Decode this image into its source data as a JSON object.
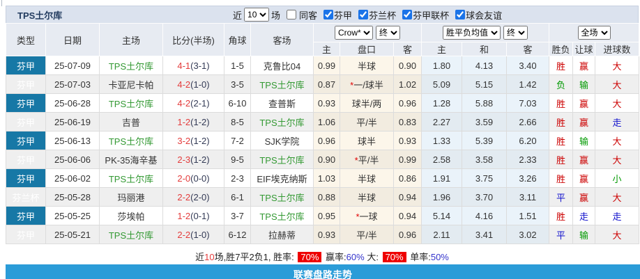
{
  "title": "TPS土尔库",
  "controls": {
    "near_label": "近",
    "near_value": "10",
    "matches_label": "场",
    "same_away_label": "同客",
    "same_away_checked": false,
    "leagues": [
      "芬甲",
      "芬兰杯",
      "芬甲联杯",
      "球会友谊"
    ],
    "bookmaker": "Crow*",
    "bookmaker_state": "终",
    "odds_view": "胜平负均值",
    "odds_state": "终",
    "scope": "全场"
  },
  "columns": {
    "type": "类型",
    "date": "日期",
    "home": "主场",
    "score": "比分(半场)",
    "corners": "角球",
    "away": "客场",
    "h_home": "主",
    "h_line": "盘口",
    "h_away": "客",
    "o_home": "主",
    "o_draw": "和",
    "o_away": "客",
    "res_wdl": "胜负",
    "res_handicap": "让球",
    "res_goals": "进球数"
  },
  "rows": [
    {
      "league": "芬甲",
      "league_style": "dark",
      "date": "25-07-09",
      "home": "TPS土尔库",
      "home_self": true,
      "score": "4-1",
      "half": "(3-1)",
      "corners": "1-5",
      "away": "克鲁比04",
      "away_self": false,
      "hcp_home": "0.99",
      "hcp_star": false,
      "hcp_line": "半球",
      "hcp_away": "0.90",
      "win": "1.80",
      "draw": "4.13",
      "lose": "3.40",
      "res": "胜",
      "res_color": "red",
      "hcp_res": "赢",
      "hcp_res_color": "red",
      "goal_res": "大",
      "goal_res_color": "red"
    },
    {
      "league": "芬甲",
      "league_style": "dark",
      "date": "25-07-03",
      "home": "卡亚尼卡帕",
      "home_self": false,
      "score": "4-2",
      "half": "(1-0)",
      "corners": "3-5",
      "away": "TPS土尔库",
      "away_self": true,
      "hcp_home": "0.87",
      "hcp_star": true,
      "hcp_line": "一/球半",
      "hcp_away": "1.02",
      "win": "5.09",
      "draw": "5.15",
      "lose": "1.42",
      "res": "负",
      "res_color": "green",
      "hcp_res": "输",
      "hcp_res_color": "green",
      "goal_res": "大",
      "goal_res_color": "red"
    },
    {
      "league": "芬甲",
      "league_style": "dark",
      "date": "25-06-28",
      "home": "TPS土尔库",
      "home_self": true,
      "score": "4-2",
      "half": "(2-1)",
      "corners": "6-10",
      "away": "查普斯",
      "away_self": false,
      "hcp_home": "0.93",
      "hcp_star": false,
      "hcp_line": "球半/两",
      "hcp_away": "0.96",
      "win": "1.28",
      "draw": "5.88",
      "lose": "7.03",
      "res": "胜",
      "res_color": "red",
      "hcp_res": "赢",
      "hcp_res_color": "red",
      "goal_res": "大",
      "goal_res_color": "red"
    },
    {
      "league": "芬甲",
      "league_style": "dark",
      "date": "25-06-19",
      "home": "吉普",
      "home_self": false,
      "score": "1-2",
      "half": "(1-2)",
      "corners": "8-5",
      "away": "TPS土尔库",
      "away_self": true,
      "hcp_home": "1.06",
      "hcp_star": false,
      "hcp_line": "平/半",
      "hcp_away": "0.83",
      "win": "2.27",
      "draw": "3.59",
      "lose": "2.66",
      "res": "胜",
      "res_color": "red",
      "hcp_res": "赢",
      "hcp_res_color": "red",
      "goal_res": "走",
      "goal_res_color": "blue"
    },
    {
      "league": "芬甲",
      "league_style": "dark",
      "date": "25-06-13",
      "home": "TPS土尔库",
      "home_self": true,
      "score": "3-2",
      "half": "(1-2)",
      "corners": "7-2",
      "away": "SJK学院",
      "away_self": false,
      "hcp_home": "0.96",
      "hcp_star": false,
      "hcp_line": "球半",
      "hcp_away": "0.93",
      "win": "1.33",
      "draw": "5.39",
      "lose": "6.20",
      "res": "胜",
      "res_color": "red",
      "hcp_res": "输",
      "hcp_res_color": "green",
      "goal_res": "大",
      "goal_res_color": "red"
    },
    {
      "league": "芬甲",
      "league_style": "dark",
      "date": "25-06-06",
      "home": "PK-35海辛基",
      "home_self": false,
      "score": "2-3",
      "half": "(1-2)",
      "corners": "9-5",
      "away": "TPS土尔库",
      "away_self": true,
      "hcp_home": "0.90",
      "hcp_star": true,
      "hcp_line": "平/半",
      "hcp_away": "0.99",
      "win": "2.58",
      "draw": "3.58",
      "lose": "2.33",
      "res": "胜",
      "res_color": "red",
      "hcp_res": "赢",
      "hcp_res_color": "red",
      "goal_res": "大",
      "goal_res_color": "red"
    },
    {
      "league": "芬甲",
      "league_style": "dark",
      "date": "25-06-02",
      "home": "TPS土尔库",
      "home_self": true,
      "score": "2-0",
      "half": "(0-0)",
      "corners": "2-3",
      "away": "EIF埃克纳斯",
      "away_self": false,
      "hcp_home": "1.03",
      "hcp_star": false,
      "hcp_line": "半球",
      "hcp_away": "0.86",
      "win": "1.91",
      "draw": "3.75",
      "lose": "3.26",
      "res": "胜",
      "res_color": "red",
      "hcp_res": "赢",
      "hcp_res_color": "red",
      "goal_res": "小",
      "goal_res_color": "green"
    },
    {
      "league": "芬兰杯",
      "league_style": "light",
      "date": "25-05-28",
      "home": "玛丽港",
      "home_self": false,
      "score": "2-2",
      "half": "(2-0)",
      "corners": "6-1",
      "away": "TPS土尔库",
      "away_self": true,
      "hcp_home": "0.88",
      "hcp_star": false,
      "hcp_line": "半球",
      "hcp_away": "0.94",
      "win": "1.96",
      "draw": "3.70",
      "lose": "3.11",
      "res": "平",
      "res_color": "blue",
      "hcp_res": "赢",
      "hcp_res_color": "red",
      "goal_res": "大",
      "goal_res_color": "red"
    },
    {
      "league": "芬甲",
      "league_style": "dark",
      "date": "25-05-25",
      "home": "莎埃帕",
      "home_self": false,
      "score": "1-2",
      "half": "(0-1)",
      "corners": "3-7",
      "away": "TPS土尔库",
      "away_self": true,
      "hcp_home": "0.95",
      "hcp_star": true,
      "hcp_line": "一球",
      "hcp_away": "0.94",
      "win": "5.14",
      "draw": "4.16",
      "lose": "1.51",
      "res": "胜",
      "res_color": "red",
      "hcp_res": "走",
      "hcp_res_color": "blue",
      "goal_res": "走",
      "goal_res_color": "blue"
    },
    {
      "league": "芬甲",
      "league_style": "dark",
      "date": "25-05-21",
      "home": "TPS土尔库",
      "home_self": true,
      "score": "2-2",
      "half": "(1-0)",
      "corners": "6-12",
      "away": "拉赫蒂",
      "away_self": false,
      "hcp_home": "0.93",
      "hcp_star": false,
      "hcp_line": "平/半",
      "hcp_away": "0.96",
      "win": "2.11",
      "draw": "3.41",
      "lose": "3.02",
      "res": "平",
      "res_color": "blue",
      "hcp_res": "输",
      "hcp_res_color": "green",
      "goal_res": "大",
      "goal_res_color": "red"
    }
  ],
  "summary": {
    "t1": "近",
    "n1": "10",
    "t2": "场,胜7平2负1, 胜率:",
    "win_rate": "70%",
    "t3": "赢率:",
    "handicap_rate": "60%",
    "t4": "大:",
    "big_rate": "70%",
    "t5": "单率:",
    "single_rate": "50%"
  },
  "footer": {
    "label": "联赛盘路走势"
  },
  "colors": {
    "league_dark": "#1778A6",
    "league_light": "#41B1E1",
    "team_green": "#339933",
    "score_red": "#E43C3C",
    "win_red": "#CC0000",
    "draw_blue": "#1111CC",
    "lose_green": "#009900",
    "rate_chip_bg": "#EE0000",
    "footer_blue": "#2B9CD8",
    "titlebar_bg": "#DBE2EE",
    "header_bg": "#E7EBF2"
  }
}
